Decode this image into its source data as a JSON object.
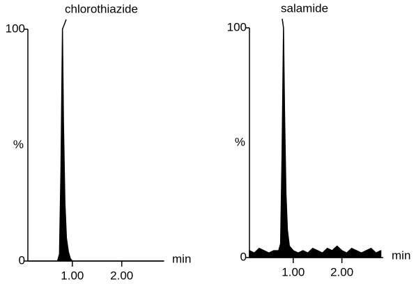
{
  "chart_data": [
    {
      "type": "area",
      "annotation": "chlorothiazide",
      "y_label": "%",
      "x_label": "min",
      "x": [
        0.1,
        0.5,
        0.7,
        0.74,
        0.77,
        0.8,
        0.82,
        0.85,
        0.88,
        0.92,
        0.96,
        1.0,
        1.5,
        2.0,
        2.5,
        2.85
      ],
      "values": [
        0,
        0,
        0,
        3,
        40,
        100,
        60,
        25,
        10,
        4,
        1,
        0,
        0,
        0,
        0,
        0
      ],
      "color": "#000000",
      "xlim": [
        0.1,
        2.85
      ],
      "ylim": [
        0,
        100
      ],
      "xticks": [
        {
          "value": 1,
          "label": "1.00"
        },
        {
          "value": 2,
          "label": "2.00"
        }
      ],
      "yticks": [
        0,
        100
      ]
    },
    {
      "type": "area",
      "annotation": "salamide",
      "y_label": "%",
      "x_label": "min",
      "x": [
        0.1,
        0.2,
        0.3,
        0.4,
        0.5,
        0.6,
        0.7,
        0.74,
        0.77,
        0.8,
        0.82,
        0.85,
        0.88,
        0.92,
        1.0,
        1.1,
        1.2,
        1.3,
        1.4,
        1.5,
        1.6,
        1.7,
        1.8,
        1.9,
        2.0,
        2.1,
        2.2,
        2.3,
        2.4,
        2.5,
        2.6,
        2.7,
        2.8
      ],
      "values": [
        3,
        2,
        4,
        3,
        2,
        3,
        3,
        6,
        45,
        100,
        65,
        28,
        12,
        5,
        3,
        2,
        3,
        2,
        4,
        3,
        2,
        4,
        3,
        5,
        3,
        2,
        4,
        3,
        2,
        3,
        4,
        2,
        3
      ],
      "color": "#000000",
      "xlim": [
        0.1,
        2.85
      ],
      "ylim": [
        0,
        100
      ],
      "xticks": [
        {
          "value": 1,
          "label": "1.00"
        },
        {
          "value": 2,
          "label": "2.00"
        }
      ],
      "yticks": [
        0,
        100
      ]
    }
  ]
}
